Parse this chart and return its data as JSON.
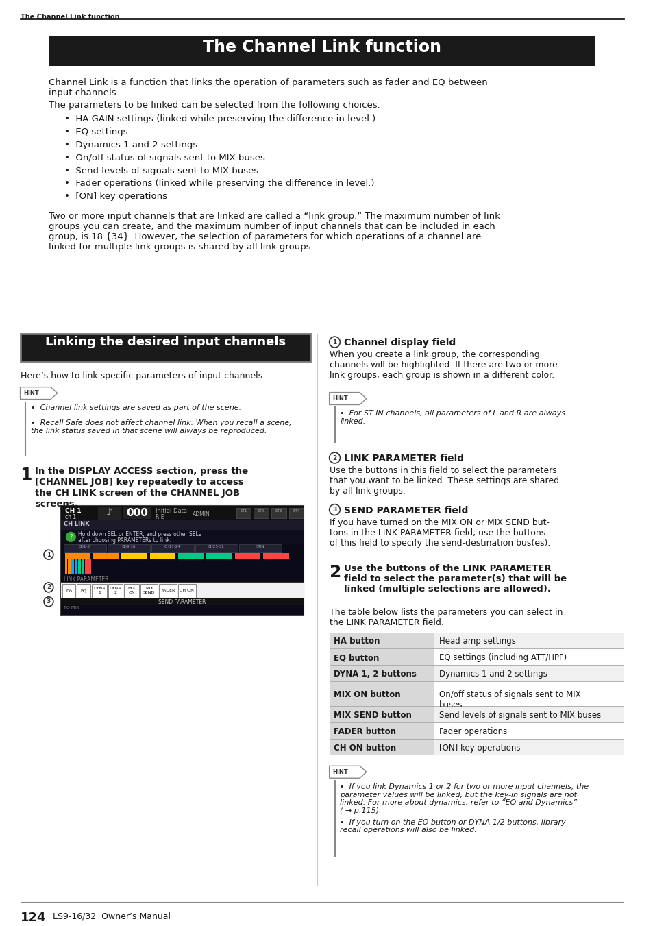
{
  "page_title_small": "The Channel Link function",
  "main_title": "The Channel Link function",
  "intro_para1a": "Channel Link is a function that links the operation of parameters such as fader and EQ between\ninput channels.",
  "intro_para1b": "The parameters to be linked can be selected from the following choices.",
  "bullet_items": [
    "HA GAIN settings (linked while preserving the difference in level.)",
    "EQ settings",
    "Dynamics 1 and 2 settings",
    "On/off status of signals sent to MIX buses",
    "Send levels of signals sent to MIX buses",
    "Fader operations (linked while preserving the difference in level.)",
    "[ON] key operations"
  ],
  "para2": "Two or more input channels that are linked are called a “link group.” The maximum number of link\ngroups you can create, and the maximum number of input channels that can be included in each\ngroup, is 18 {34}. However, the selection of parameters for which operations of a channel are\nlinked for multiple link groups is shared by all link groups.",
  "section_box_title": "Linking the desired input channels",
  "section_subtitle": "Here’s how to link specific parameters of input channels.",
  "hint_left_line1": "Channel link settings are saved as part of the scene.",
  "hint_left_line2": "Recall Safe does not affect channel link. When you recall a scene,\nthe link status saved in that scene will always be reproduced.",
  "step1_line1": "In the DISPLAY ACCESS section, press the",
  "step1_line2": "[CHANNEL JOB] key repeatedly to access",
  "step1_line3": "the CH LINK screen of the CHANNEL JOB",
  "step1_line4": "screens.",
  "circled1_title": "Channel display field",
  "circled1_text": "When you create a link group, the corresponding\nchannels will be highlighted. If there are two or more\nlink groups, each group is shown in a different color.",
  "hint_right_line1": "For ST IN channels, all parameters of L and R are always\nlinked.",
  "circled2_title": "LINK PARAMETER field",
  "circled2_text": "Use the buttons in this field to select the parameters\nthat you want to be linked. These settings are shared\nby all link groups.",
  "circled3_title": "SEND PARAMETER field",
  "circled3_text": "If you have turned on the MIX ON or MIX SEND but-\ntons in the LINK PARAMETER field, use the buttons\nof this field to specify the send-destination bus(es).",
  "step2_bold": "Use the buttons of the LINK PARAMETER\nfield to select the parameter(s) that will be\nlinked (multiple selections are allowed).",
  "step2_text": "The table below lists the parameters you can select in\nthe LINK PARAMETER field.",
  "table_rows": [
    [
      "HA button",
      "Head amp settings"
    ],
    [
      "EQ button",
      "EQ settings (including ATT/HPF)"
    ],
    [
      "DYNA 1, 2 buttons",
      "Dynamics 1 and 2 settings"
    ],
    [
      "MIX ON button",
      "On/off status of signals sent to MIX\nbuses"
    ],
    [
      "MIX SEND button",
      "Send levels of signals sent to MIX buses"
    ],
    [
      "FADER button",
      "Fader operations"
    ],
    [
      "CH ON button",
      "[ON] key operations"
    ]
  ],
  "hint_bottom_line1": "If you link Dynamics 1 or 2 for two or more input channels, the\nparameter values will be linked, but the key-in signals are not\nlinked. For more about dynamics, refer to “EQ and Dynamics”\n( → p.115).",
  "hint_bottom_line2": "If you turn on the EQ button or DYNA 1/2 buttons, library\nrecall operations will also be linked.",
  "page_number": "124",
  "page_footer": "LS9-16/32  Owner’s Manual",
  "bg_color": "#ffffff",
  "text_color": "#1a1a1a",
  "header_bg": "#1a1a1a",
  "header_text_color": "#ffffff",
  "section_box_bg": "#1a1a1a",
  "divider_color": "#333333",
  "table_left_bg": "#d8d8d8",
  "table_row_bg_even": "#f0f0f0",
  "table_row_bg_odd": "#ffffff",
  "table_border": "#aaaaaa"
}
